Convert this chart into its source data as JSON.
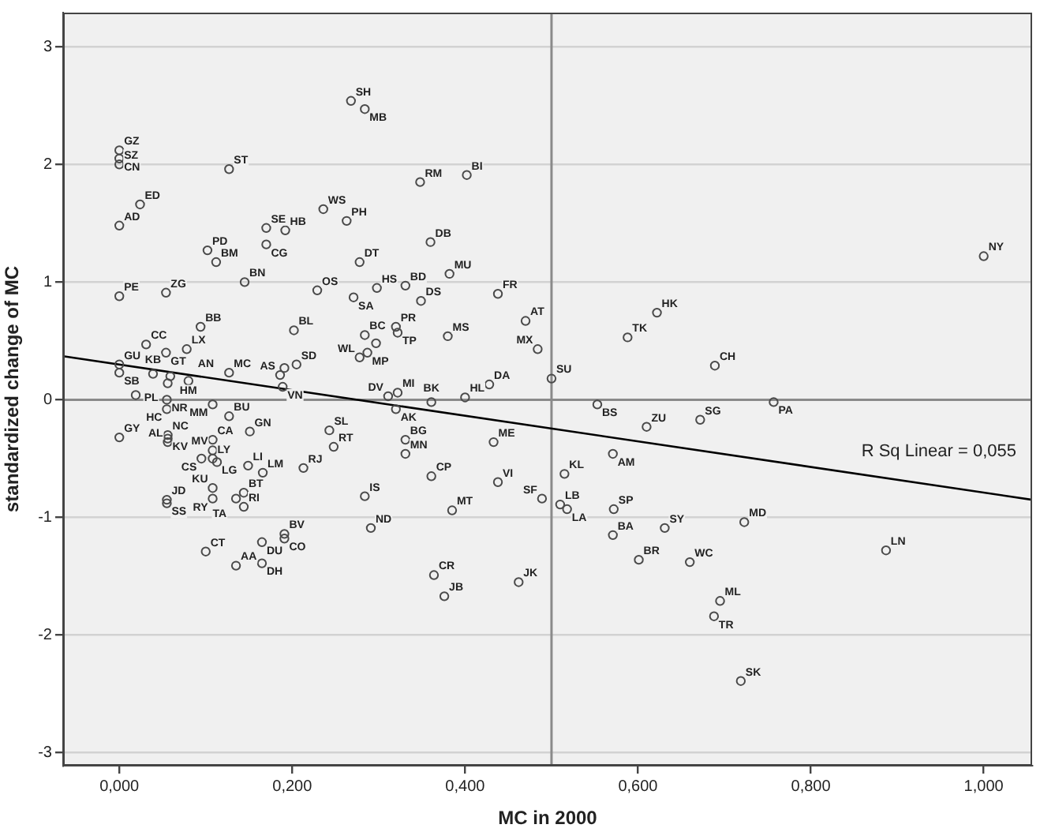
{
  "chart_data": {
    "type": "scatter",
    "xlabel": "MC in 2000",
    "ylabel": "standardized change of MC",
    "xlim": [
      -0.065,
      1.056
    ],
    "ylim": [
      -3.11,
      3.29
    ],
    "xticks": [
      {
        "value": 0,
        "label": "0,000"
      },
      {
        "value": 0.2,
        "label": "0,200"
      },
      {
        "value": 0.4,
        "label": "0,400"
      },
      {
        "value": 0.6,
        "label": "0,600"
      },
      {
        "value": 0.8,
        "label": "0,800"
      },
      {
        "value": 1,
        "label": "1,000"
      }
    ],
    "yticks": [
      -3,
      -2,
      -1,
      0,
      1,
      2,
      3
    ],
    "grid": "y",
    "legend": false,
    "marker": "circle",
    "ref_lines": [
      {
        "axis": "y",
        "value": 0,
        "color": "#8a8a8a"
      },
      {
        "axis": "x",
        "value": 0.5,
        "color": "#8a8a8a"
      }
    ],
    "annotations": [
      "R Sq Linear = 0,055"
    ],
    "series": [
      {
        "color": "#4a4a4a",
        "x": [
          0,
          0,
          0,
          0.127,
          0.024,
          0,
          0.268,
          0.284,
          0.236,
          0.263,
          0.17,
          0.192,
          0.102,
          0.112,
          0.17,
          0.145,
          0.278,
          0,
          0.054,
          0.229,
          0.271,
          0.298,
          0.094,
          0.202,
          0.284,
          0.297,
          0.32,
          0.322,
          0.287,
          0.278,
          0.031,
          0.054,
          0.078,
          0.127,
          0.186,
          0.191,
          0.205,
          0.189,
          0,
          0,
          0.039,
          0.059,
          0.056,
          0.08,
          0.019,
          0.055,
          0.055,
          0.108,
          0,
          0.056,
          0.056,
          0.056,
          0.108,
          0.108,
          0.095,
          0.108,
          0.113,
          0.149,
          0.151,
          0.127,
          0.055,
          0.055,
          0.108,
          0.108,
          0.135,
          0.144,
          0.144,
          0.166,
          0.213,
          0.1,
          0.165,
          0.191,
          0.191,
          0.135,
          0.165,
          0.243,
          0.248,
          0.311,
          0.322,
          0.32,
          0.331,
          0.331,
          0.284,
          0.291,
          0.361,
          0.385,
          0.438,
          0.433,
          0.4,
          0.361,
          0.428,
          0.364,
          0.376,
          0.462,
          0.489,
          0.51,
          0.518,
          0.515,
          0.571,
          0.61,
          0.553,
          0.672,
          0.572,
          0.571,
          0.631,
          0.601,
          0.66,
          0.757,
          0.723,
          0.887,
          0.695,
          0.688,
          0.719,
          0.348,
          0.402,
          0.36,
          0.382,
          0.331,
          0.349,
          0.438,
          0.47,
          0.38,
          0.484,
          0.5,
          0.588,
          0.622,
          0.689,
          1.0
        ],
        "values": [
          2.12,
          2.05,
          2.0,
          1.96,
          1.66,
          1.48,
          2.54,
          2.47,
          1.62,
          1.52,
          1.46,
          1.44,
          1.27,
          1.17,
          1.32,
          1.0,
          1.17,
          0.88,
          0.91,
          0.93,
          0.87,
          0.95,
          0.62,
          0.59,
          0.55,
          0.48,
          0.62,
          0.57,
          0.4,
          0.36,
          0.47,
          0.4,
          0.43,
          0.23,
          0.21,
          0.27,
          0.3,
          0.11,
          0.3,
          0.23,
          0.22,
          0.2,
          0.14,
          0.16,
          0.04,
          0.0,
          -0.08,
          -0.04,
          -0.32,
          -0.3,
          -0.33,
          -0.36,
          -0.34,
          -0.43,
          -0.5,
          -0.5,
          -0.53,
          -0.56,
          -0.27,
          -0.14,
          -0.85,
          -0.88,
          -0.75,
          -0.84,
          -0.84,
          -0.79,
          -0.91,
          -0.62,
          -0.58,
          -1.29,
          -1.21,
          -1.14,
          -1.18,
          -1.41,
          -1.39,
          -0.26,
          -0.4,
          0.03,
          0.06,
          -0.08,
          -0.34,
          -0.46,
          -0.82,
          -1.09,
          -0.65,
          -0.94,
          -0.7,
          -0.36,
          0.02,
          -0.02,
          0.13,
          -1.49,
          -1.67,
          -1.55,
          -0.84,
          -0.89,
          -0.93,
          -0.63,
          -0.46,
          -0.23,
          -0.04,
          -0.17,
          -0.93,
          -1.15,
          -1.09,
          -1.36,
          -1.38,
          -0.02,
          -1.04,
          -1.28,
          -1.71,
          -1.84,
          -2.39,
          1.85,
          1.91,
          1.34,
          1.07,
          0.97,
          0.84,
          0.9,
          0.67,
          0.54,
          0.43,
          0.18,
          0.53,
          0.74,
          0.29,
          1.22
        ],
        "value_labels": [
          "GZ",
          "CN",
          "SZ",
          "ST",
          "ED",
          "AD",
          "SH",
          "MB",
          "WS",
          "PH",
          "SE",
          "HB",
          "PD",
          "BM",
          "CG",
          "BN",
          "DT",
          "PE",
          "ZG",
          "OS",
          "SA",
          "HS",
          "BB",
          "BL",
          "BC",
          null,
          "PR",
          "TP",
          "MP",
          "WL",
          "CC",
          "GT",
          "LX",
          "MC",
          "AS",
          null,
          "SD",
          "VN",
          "GU",
          "SB",
          "KB",
          "HM",
          "PL",
          "AN",
          null,
          "NR",
          "HC",
          "MM",
          "GY",
          "NC",
          "KV",
          "AL",
          "CA",
          "MV",
          "CS",
          "LY",
          "LG",
          "LI",
          "GN",
          "BU",
          "JD",
          "SS",
          "KU",
          "RY",
          "TA",
          "BT",
          "RI",
          "LM",
          "RJ",
          "CT",
          "DU",
          "BV",
          "CO",
          "AA",
          "DH",
          "SL",
          "RT",
          "DV",
          "MI",
          "AK",
          "BG",
          "MN",
          "IS",
          "ND",
          "CP",
          "MT",
          "VI",
          "ME",
          "HL",
          "BK",
          "DA",
          "CR",
          "JB",
          "JK",
          "SF",
          "LB",
          "LA",
          "KL",
          "AM",
          "ZU",
          "BS",
          "SG",
          "SP",
          "BA",
          "SY",
          "BR",
          "WC",
          "PA",
          "MD",
          "LN",
          "ML",
          "TR",
          "SK",
          "RM",
          "BI",
          "DB",
          "MU",
          "BD",
          "DS",
          "FR",
          "AT",
          "MS",
          "MX",
          "SU",
          "TK",
          "HK",
          "CH",
          "NY"
        ]
      },
      {
        "type": "line",
        "marker": "none",
        "color": "#000000",
        "x": [
          -0.065,
          1.056
        ],
        "values": [
          0.37,
          -0.85
        ]
      }
    ]
  }
}
